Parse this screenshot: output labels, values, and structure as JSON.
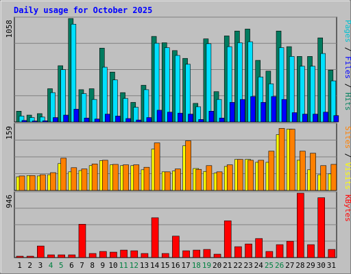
{
  "chart_data": {
    "type": "bar",
    "title": "Daily usage for October 2025",
    "categories": [
      "1",
      "2",
      "3",
      "4",
      "5",
      "6",
      "7",
      "8",
      "9",
      "10",
      "11",
      "12",
      "13",
      "14",
      "15",
      "16",
      "17",
      "18",
      "19",
      "20",
      "21",
      "22",
      "23",
      "24",
      "25",
      "26",
      "27",
      "28",
      "29",
      "30",
      "31"
    ],
    "weekend_days": [
      "4",
      "5",
      "11",
      "12",
      "18",
      "19",
      "25",
      "26"
    ],
    "panels": [
      {
        "name": "pages-files-hits",
        "max_label": "1058",
        "ymax": 1058,
        "right_label": [
          {
            "text": "Pages",
            "color": "#00c0d0"
          },
          {
            "text": " / ",
            "color": "#000000"
          },
          {
            "text": "Files",
            "color": "#0000ff"
          },
          {
            "text": " / ",
            "color": "#000000"
          },
          {
            "text": "Hits",
            "color": "#00805c"
          }
        ],
        "series": [
          {
            "key": "hits",
            "color": "#007b5f",
            "values": [
              110,
              70,
              85,
              340,
              575,
              1058,
              330,
              340,
              755,
              510,
              300,
              200,
              375,
              875,
              810,
              730,
              650,
              190,
              850,
              310,
              880,
              930,
              950,
              630,
              520,
              930,
              770,
              670,
              670,
              860,
              530
            ]
          },
          {
            "key": "files",
            "color": "#00e0ff",
            "values": [
              60,
              45,
              50,
              300,
              535,
              1000,
              290,
              230,
              560,
              430,
              240,
              150,
              330,
              805,
              760,
              680,
              590,
              155,
              800,
              230,
              770,
              810,
              820,
              460,
              390,
              760,
              670,
              570,
              570,
              700,
              420
            ]
          },
          {
            "key": "pages",
            "color": "#0000ff",
            "values": [
              15,
              10,
              12,
              45,
              70,
              130,
              40,
              30,
              80,
              60,
              35,
              20,
              45,
              120,
              100,
              90,
              80,
              25,
              110,
              40,
              200,
              230,
              260,
              200,
              260,
              230,
              95,
              80,
              80,
              100,
              65
            ]
          }
        ]
      },
      {
        "name": "sites-visits",
        "max_label": "159",
        "ymax": 159,
        "right_label": [
          {
            "text": "Sites",
            "color": "#ff8000"
          },
          {
            "text": " / ",
            "color": "#000000"
          },
          {
            "text": "Visits",
            "color": "#ffff00"
          }
        ],
        "series": [
          {
            "key": "visits",
            "color": "#ffff00",
            "values": [
              33,
              36,
              35,
              38,
              65,
              45,
              48,
              60,
              72,
              62,
              60,
              60,
              50,
              100,
              45,
              47,
              108,
              53,
              46,
              42,
              58,
              75,
              75,
              68,
              68,
              135,
              148,
              73,
              50,
              38,
              40
            ]
          },
          {
            "key": "sites",
            "color": "#ff8000",
            "values": [
              35,
              36,
              38,
              43,
              78,
              55,
              52,
              64,
              73,
              63,
              62,
              62,
              56,
              115,
              45,
              52,
              120,
              51,
              60,
              45,
              62,
              75,
              73,
              73,
              95,
              150,
              148,
              95,
              90,
              60,
              63
            ]
          }
        ]
      },
      {
        "name": "kbytes",
        "max_label": "946",
        "ymax": 946,
        "right_label": [
          {
            "text": "KBytes",
            "color": "#ff0000"
          }
        ],
        "series": [
          {
            "key": "kbytes",
            "color": "#ff0000",
            "values": [
              20,
              20,
              170,
              40,
              40,
              40,
              490,
              60,
              90,
              80,
              110,
              100,
              60,
              585,
              60,
              315,
              100,
              110,
              120,
              50,
              540,
              160,
              200,
              280,
              90,
              190,
              240,
              946,
              190,
              880,
              120
            ]
          }
        ]
      }
    ]
  }
}
